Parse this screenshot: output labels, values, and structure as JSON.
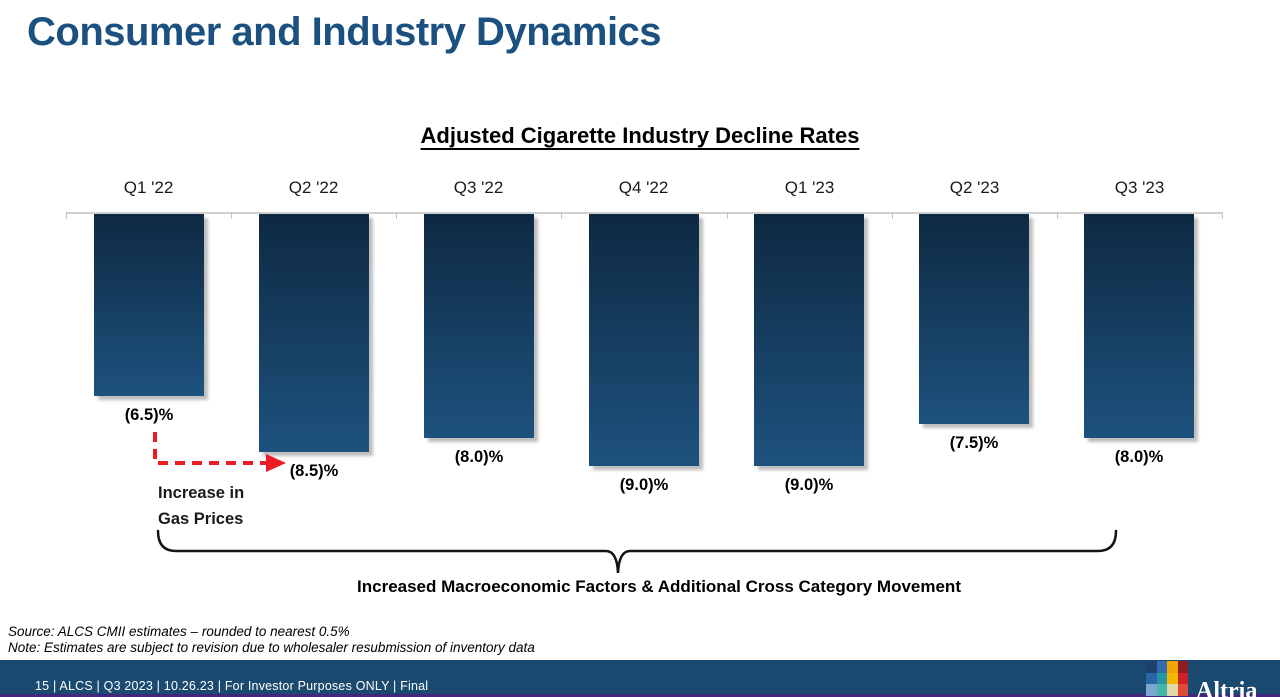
{
  "slide_title": "Consumer and Industry Dynamics",
  "chart_data": {
    "type": "bar",
    "title": "Adjusted Cigarette Industry Decline Rates",
    "categories": [
      "Q1 '22",
      "Q2 '22",
      "Q3 '22",
      "Q4 '22",
      "Q1 '23",
      "Q2 '23",
      "Q3 '23"
    ],
    "values": [
      -6.5,
      -8.5,
      -8.0,
      -9.0,
      -9.0,
      -7.5,
      -8.0
    ],
    "value_labels": [
      "(6.5)%",
      "(8.5)%",
      "(8.0)%",
      "(9.0)%",
      "(9.0)%",
      "(7.5)%",
      "(8.0)%"
    ],
    "unit": "percent decline rate",
    "ylim": [
      -10,
      0
    ],
    "grid": false,
    "legend": false,
    "xlabel": "",
    "ylabel": "",
    "bar_color_top": "#0e2942",
    "bar_color_bottom": "#1d527e"
  },
  "annotations": {
    "gas_prices": [
      "Increase in",
      "Gas Prices"
    ],
    "gas_arrow_color": "#ed1c24",
    "bracket_color": "#141414",
    "bracket_label": "Increased Macroeconomic Factors & Additional Cross Category Movement"
  },
  "footnotes": {
    "source": "Source: ALCS CMII estimates – rounded to nearest 0.5%",
    "note": "Note: Estimates are subject to revision due to wholesaler resubmission of inventory data"
  },
  "footer_bar": {
    "text": "15 | ALCS | Q3 2023 | 10.26.23 | For Investor Purposes ONLY | Final",
    "background": "#1a4a70",
    "accent_line_color": "#44277d",
    "logo_text": "Altria",
    "logo_mosaic": [
      [
        "#1c3f6e",
        "#2f6db0",
        "#f0a500",
        "#8f1d22"
      ],
      [
        "#2a66a5",
        "#2596a6",
        "#f3b700",
        "#cf2027"
      ],
      [
        "#7aa8d0",
        "#45b5aa",
        "#e2d7a7",
        "#df4a35"
      ]
    ]
  },
  "colors": {
    "title": "#1b5180",
    "axis_line": "#cfcfcf",
    "text": "#1a1a1a"
  }
}
